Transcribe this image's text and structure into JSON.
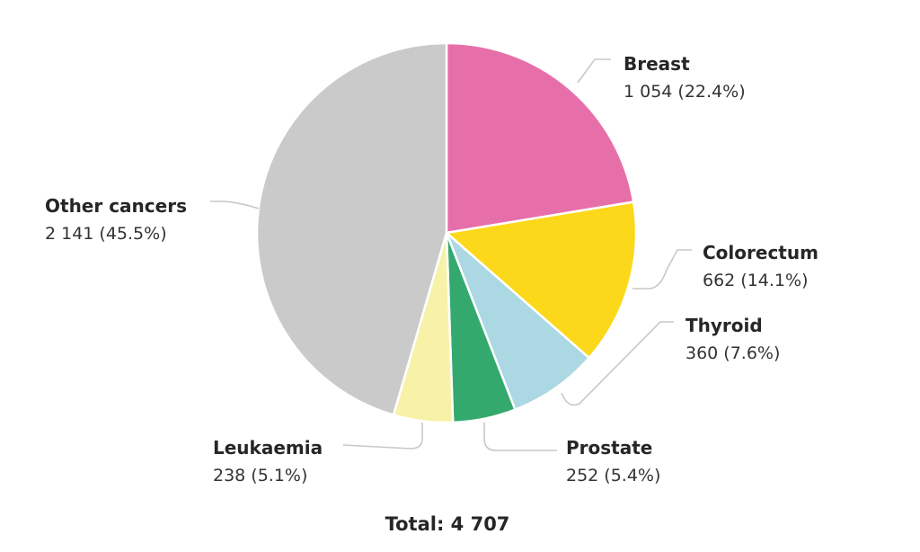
{
  "chart_data": {
    "type": "pie",
    "slices": [
      {
        "label": "Breast",
        "value": 1054,
        "value_text": "1 054 (22.4%)",
        "percent": 22.4,
        "color": "#e76fa9"
      },
      {
        "label": "Colorectum",
        "value": 662,
        "value_text": "662 (14.1%)",
        "percent": 14.1,
        "color": "#fcd81a"
      },
      {
        "label": "Thyroid",
        "value": 360,
        "value_text": "360 (7.6%)",
        "percent": 7.6,
        "color": "#acd8e3"
      },
      {
        "label": "Prostate",
        "value": 252,
        "value_text": "252 (5.4%)",
        "percent": 5.4,
        "color": "#34a96e"
      },
      {
        "label": "Leukaemia",
        "value": 238,
        "value_text": "238 (5.1%)",
        "percent": 5.1,
        "color": "#f7f2a8"
      },
      {
        "label": "Other cancers",
        "value": 2141,
        "value_text": "2 141 (45.5%)",
        "percent": 45.5,
        "color": "#cacaca"
      }
    ],
    "total_text": "Total: 4 707",
    "start_angle": "12 o'clock",
    "direction": "clockwise"
  }
}
